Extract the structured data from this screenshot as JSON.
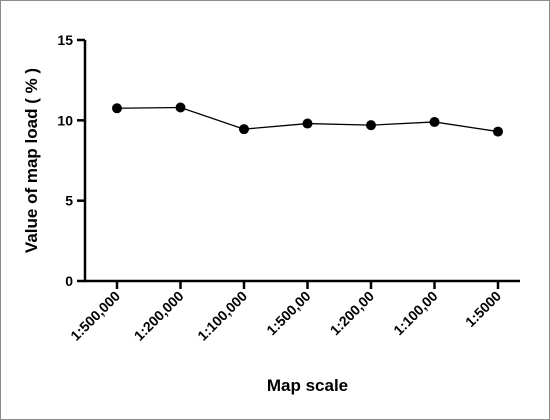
{
  "chart_data": {
    "type": "line",
    "title": "",
    "xlabel": "Map scale",
    "ylabel": "Value of map load ( % )",
    "categories": [
      "1:500,000",
      "1:200,000",
      "1:100,000",
      "1:500,00",
      "1:200,00",
      "1:100,00",
      "1:5000"
    ],
    "series": [
      {
        "values": [
          10.75,
          10.8,
          9.45,
          9.8,
          9.7,
          9.9,
          9.3
        ]
      }
    ],
    "ylim": [
      0,
      15
    ],
    "yticks": [
      0,
      5,
      10,
      15
    ],
    "grid": false,
    "legend": "none",
    "line_color": "#000000",
    "marker_color": "#000000",
    "marker": "filled-circle"
  }
}
